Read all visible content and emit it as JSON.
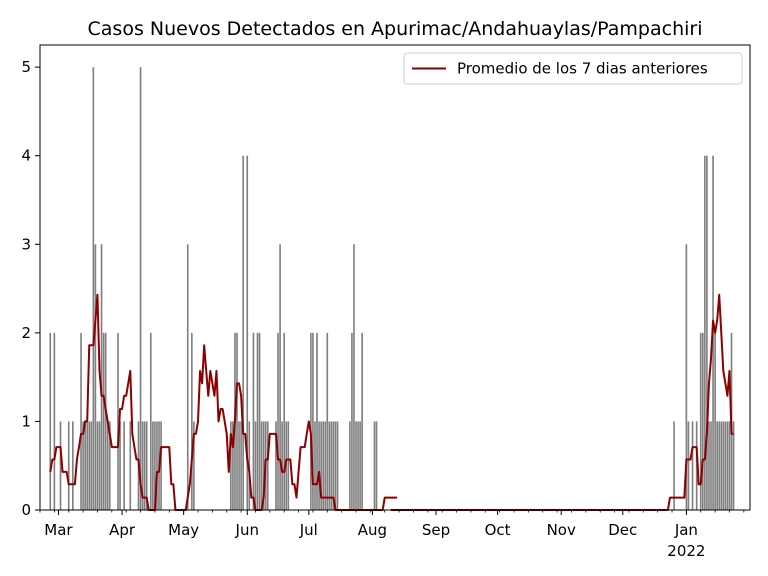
{
  "chart_data": {
    "type": "bar",
    "title": "Casos Nuevos Detectados en Apurimac/Andahuaylas/Pampachiri",
    "xlabel": "",
    "ylabel": "",
    "x_range": [
      "2021-02-20",
      "2022-02-01"
    ],
    "ylim": [
      0,
      5.25
    ],
    "y_ticks": [
      0,
      1,
      2,
      3,
      4,
      5
    ],
    "x_ticks": [
      {
        "date": "2021-03-01",
        "label": "Mar",
        "sublabel": ""
      },
      {
        "date": "2021-04-01",
        "label": "Apr",
        "sublabel": ""
      },
      {
        "date": "2021-05-01",
        "label": "May",
        "sublabel": ""
      },
      {
        "date": "2021-06-01",
        "label": "Jun",
        "sublabel": ""
      },
      {
        "date": "2021-07-01",
        "label": "Jul",
        "sublabel": ""
      },
      {
        "date": "2021-08-01",
        "label": "Aug",
        "sublabel": ""
      },
      {
        "date": "2021-09-01",
        "label": "Sep",
        "sublabel": ""
      },
      {
        "date": "2021-10-01",
        "label": "Oct",
        "sublabel": ""
      },
      {
        "date": "2021-11-01",
        "label": "Nov",
        "sublabel": ""
      },
      {
        "date": "2021-12-01",
        "label": "Dec",
        "sublabel": ""
      },
      {
        "date": "2022-01-01",
        "label": "Jan",
        "sublabel": "2022"
      }
    ],
    "grid": false,
    "legend_position": "top-right",
    "bar_color": "#808080",
    "line_color": "#8b0000",
    "series": [
      {
        "name": "",
        "kind": "bar",
        "start_date": "2021-02-25",
        "values": [
          2,
          0,
          2,
          0,
          0,
          1,
          0,
          0,
          0,
          1,
          0,
          1,
          0,
          0,
          0,
          2,
          1,
          1,
          1,
          1,
          1,
          5,
          3,
          1,
          1,
          3,
          2,
          2,
          1,
          1,
          0,
          0,
          0,
          2,
          1,
          0,
          1,
          0,
          0,
          1,
          0,
          0,
          0,
          1,
          5,
          1,
          1,
          1,
          0,
          2,
          1,
          1,
          1,
          1,
          1,
          0,
          0,
          0,
          0,
          0,
          0,
          0,
          0,
          0,
          0,
          0,
          0,
          3,
          0,
          2,
          1,
          0,
          0,
          0,
          0,
          0,
          0,
          0,
          0,
          0,
          0,
          0,
          0,
          0,
          0,
          0,
          0,
          0,
          1,
          1,
          2,
          2,
          1,
          1,
          4,
          0,
          4,
          1,
          0,
          2,
          1,
          2,
          2,
          1,
          1,
          1,
          1,
          0,
          0,
          0,
          1,
          2,
          3,
          1,
          2,
          1,
          1,
          0,
          0,
          0,
          0,
          0,
          0,
          0,
          0,
          0,
          0,
          2,
          2,
          1,
          2,
          1,
          1,
          1,
          1,
          2,
          1,
          1,
          1,
          1,
          1,
          0,
          0,
          0,
          0,
          0,
          1,
          2,
          3,
          1,
          1,
          1,
          2,
          0,
          0,
          0,
          0,
          0,
          1
        ]
      },
      {
        "name": "",
        "kind": "bar",
        "start_date": "2021-07-28",
        "values": [
          0,
          0,
          0,
          0,
          0,
          0,
          1
        ]
      },
      {
        "name": "",
        "kind": "bar",
        "start_date": "2021-12-26",
        "values": [
          1,
          0,
          0,
          0,
          0,
          0,
          3,
          1,
          0,
          1,
          0,
          1,
          0,
          2,
          2,
          4,
          4,
          1,
          1,
          4,
          2,
          1,
          1,
          1,
          1,
          1,
          1,
          1,
          2,
          1
        ]
      },
      {
        "name": "Promedio de los 7 dias anteriores",
        "kind": "line",
        "start_date": "2021-02-25",
        "values": [
          0.43,
          0.57,
          0.57,
          0.71,
          0.71,
          0.71,
          0.43,
          0.43,
          0.43,
          0.29,
          0.29,
          0.29,
          0.29,
          0.57,
          0.71,
          0.86,
          0.86,
          1,
          1,
          1.86,
          1.86,
          1.86,
          2.14,
          2.43,
          1.57,
          1.29,
          1.29,
          1.14,
          1,
          0.86,
          0.71,
          0.71,
          0.71,
          0.71,
          1.14,
          1.14,
          1.29,
          1.29,
          1.43,
          1.57,
          0.86,
          0.71,
          0.57,
          0.57,
          0.29,
          0.14,
          0.14,
          0.14,
          0,
          0,
          0,
          0,
          0.43,
          0.43,
          0.71,
          0.71,
          0.71,
          0.71,
          0.71,
          0.29,
          0.29,
          0,
          0,
          0,
          0,
          0,
          0,
          0.14,
          0.29,
          0.57,
          0.86,
          0.86,
          1,
          1.57,
          1.43,
          1.86,
          1.57,
          1.29,
          1.57,
          1.43,
          1.29,
          1.57,
          1,
          1.14,
          1.14,
          1,
          0.86,
          0.43,
          0.86,
          0.71,
          1,
          1.43,
          1.43,
          1.29,
          0.86,
          0.86,
          0.57,
          0.43,
          0.14,
          0.14,
          0,
          0,
          0,
          0,
          0.14,
          0.57,
          0.57,
          0.86,
          0.86,
          0.86,
          0.86,
          0.57,
          0.57,
          0.43,
          0.43,
          0.57,
          0.57,
          0.57,
          0.29,
          0.29,
          0.14,
          0.43,
          0.71,
          0.71,
          0.71,
          0.86,
          1,
          0.86,
          0.29,
          0.29,
          0.29,
          0.43,
          0.14,
          0.14,
          0.14,
          0.14,
          0.14,
          0.14,
          0.14,
          0,
          0,
          0,
          0,
          0,
          0,
          0,
          0,
          0,
          0,
          0,
          0,
          0,
          0,
          0,
          0,
          0,
          0,
          0,
          0,
          0,
          0,
          0,
          0,
          0.14,
          0.14,
          0.14,
          0.14,
          0.14,
          0.14,
          0.14
        ]
      },
      {
        "name": "",
        "kind": "line",
        "start_date": "2021-08-10",
        "values": [
          0,
          0,
          0,
          0,
          0,
          0,
          0,
          0,
          0,
          0,
          0,
          0,
          0,
          0,
          0,
          0,
          0,
          0,
          0,
          0,
          0,
          0,
          0,
          0,
          0,
          0,
          0,
          0,
          0,
          0,
          0,
          0,
          0,
          0,
          0,
          0,
          0,
          0,
          0,
          0,
          0,
          0,
          0,
          0,
          0,
          0,
          0,
          0,
          0,
          0,
          0,
          0,
          0,
          0,
          0,
          0,
          0,
          0,
          0,
          0,
          0,
          0,
          0,
          0,
          0,
          0,
          0,
          0,
          0,
          0,
          0,
          0,
          0,
          0,
          0,
          0,
          0,
          0,
          0,
          0,
          0,
          0,
          0,
          0,
          0,
          0,
          0,
          0,
          0,
          0,
          0,
          0,
          0,
          0,
          0,
          0,
          0,
          0,
          0,
          0,
          0,
          0,
          0,
          0,
          0,
          0,
          0,
          0,
          0,
          0,
          0,
          0,
          0,
          0,
          0,
          0,
          0,
          0,
          0,
          0,
          0,
          0,
          0,
          0,
          0,
          0,
          0,
          0,
          0,
          0,
          0,
          0,
          0,
          0,
          0,
          0,
          0.14,
          0.14,
          0.14,
          0.14,
          0.14,
          0.14,
          0.14,
          0.14,
          0.57,
          0.57,
          0.57,
          0.71,
          0.71,
          0.71,
          0.29,
          0.29,
          0.57,
          0.57,
          0.86,
          1.43,
          1.71,
          2.14,
          2,
          2.14,
          2.43,
          2,
          1.57,
          1.43,
          1.29,
          1.57,
          0.86,
          0.86
        ]
      }
    ]
  }
}
